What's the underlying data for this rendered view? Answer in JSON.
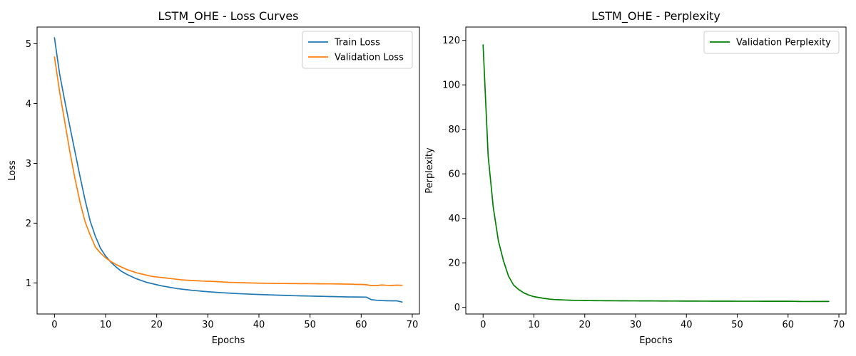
{
  "chart_data": [
    {
      "type": "line",
      "title": "LSTM_OHE - Loss Curves",
      "xlabel": "Epochs",
      "ylabel": "Loss",
      "xlim": [
        -3.4,
        71.4
      ],
      "ylim": [
        0.48,
        5.28
      ],
      "xticks": [
        0,
        10,
        20,
        30,
        40,
        50,
        60,
        70
      ],
      "yticks": [
        1,
        2,
        3,
        4,
        5
      ],
      "legend_position": "upper right",
      "series": [
        {
          "name": "Train Loss",
          "color": "#1f77b4",
          "x": [
            0,
            1,
            2,
            3,
            4,
            5,
            6,
            7,
            8,
            9,
            10,
            11,
            12,
            13,
            14,
            15,
            16,
            17,
            18,
            19,
            20,
            21,
            22,
            23,
            24,
            25,
            26,
            27,
            28,
            29,
            30,
            31,
            32,
            33,
            34,
            35,
            36,
            37,
            38,
            39,
            40,
            41,
            42,
            43,
            44,
            45,
            46,
            47,
            48,
            49,
            50,
            51,
            52,
            53,
            54,
            55,
            56,
            57,
            58,
            59,
            60,
            61,
            62,
            63,
            64,
            65,
            66,
            67,
            68
          ],
          "values": [
            5.1,
            4.5,
            4.05,
            3.62,
            3.2,
            2.78,
            2.38,
            2.03,
            1.78,
            1.58,
            1.45,
            1.35,
            1.27,
            1.2,
            1.15,
            1.11,
            1.07,
            1.04,
            1.01,
            0.99,
            0.97,
            0.95,
            0.935,
            0.92,
            0.905,
            0.895,
            0.885,
            0.875,
            0.868,
            0.86,
            0.853,
            0.847,
            0.84,
            0.835,
            0.83,
            0.825,
            0.82,
            0.817,
            0.813,
            0.81,
            0.806,
            0.803,
            0.8,
            0.797,
            0.794,
            0.791,
            0.788,
            0.786,
            0.784,
            0.782,
            0.78,
            0.778,
            0.776,
            0.774,
            0.772,
            0.77,
            0.768,
            0.766,
            0.765,
            0.764,
            0.763,
            0.762,
            0.72,
            0.71,
            0.705,
            0.702,
            0.7,
            0.7,
            0.68
          ]
        },
        {
          "name": "Validation Loss",
          "color": "#ff7f0e",
          "x": [
            0,
            1,
            2,
            3,
            4,
            5,
            6,
            7,
            8,
            9,
            10,
            11,
            12,
            13,
            14,
            15,
            16,
            17,
            18,
            19,
            20,
            21,
            22,
            23,
            24,
            25,
            26,
            27,
            28,
            29,
            30,
            31,
            32,
            33,
            34,
            35,
            36,
            37,
            38,
            39,
            40,
            41,
            42,
            43,
            44,
            45,
            46,
            47,
            48,
            49,
            50,
            51,
            52,
            53,
            54,
            55,
            56,
            57,
            58,
            59,
            60,
            61,
            62,
            63,
            64,
            65,
            66,
            67,
            68
          ],
          "values": [
            4.78,
            4.2,
            3.7,
            3.2,
            2.75,
            2.35,
            2.02,
            1.8,
            1.6,
            1.5,
            1.42,
            1.36,
            1.31,
            1.27,
            1.23,
            1.2,
            1.17,
            1.15,
            1.13,
            1.11,
            1.1,
            1.09,
            1.08,
            1.07,
            1.06,
            1.05,
            1.045,
            1.04,
            1.035,
            1.03,
            1.028,
            1.025,
            1.02,
            1.015,
            1.01,
            1.008,
            1.005,
            1.003,
            1.0,
            0.998,
            0.995,
            0.995,
            0.993,
            0.992,
            0.99,
            0.99,
            0.989,
            0.989,
            0.988,
            0.988,
            0.987,
            0.986,
            0.985,
            0.985,
            0.984,
            0.983,
            0.982,
            0.98,
            0.978,
            0.976,
            0.974,
            0.97,
            0.955,
            0.955,
            0.965,
            0.96,
            0.958,
            0.962,
            0.96
          ]
        }
      ]
    },
    {
      "type": "line",
      "title": "LSTM_OHE - Perplexity",
      "xlabel": "Epochs",
      "ylabel": "Perplexity",
      "xlim": [
        -3.4,
        71.4
      ],
      "ylim": [
        -3.0,
        126.0
      ],
      "xticks": [
        0,
        10,
        20,
        30,
        40,
        50,
        60,
        70
      ],
      "yticks": [
        0,
        20,
        40,
        60,
        80,
        100,
        120
      ],
      "legend_position": "upper right",
      "series": [
        {
          "name": "Validation Perplexity",
          "color": "#008000",
          "x": [
            0,
            1,
            2,
            3,
            4,
            5,
            6,
            7,
            8,
            9,
            10,
            11,
            12,
            13,
            14,
            15,
            16,
            17,
            18,
            19,
            20,
            21,
            22,
            23,
            24,
            25,
            26,
            27,
            28,
            29,
            30,
            31,
            32,
            33,
            34,
            35,
            36,
            37,
            38,
            39,
            40,
            41,
            42,
            43,
            44,
            45,
            46,
            47,
            48,
            49,
            50,
            51,
            52,
            53,
            54,
            55,
            56,
            57,
            58,
            59,
            60,
            61,
            62,
            63,
            64,
            65,
            66,
            67,
            68
          ],
          "values": [
            118,
            68,
            45,
            30,
            21,
            14,
            10,
            8,
            6.5,
            5.5,
            4.8,
            4.4,
            4,
            3.7,
            3.5,
            3.4,
            3.3,
            3.2,
            3.15,
            3.1,
            3.05,
            3.02,
            3,
            2.98,
            2.96,
            2.95,
            2.94,
            2.93,
            2.92,
            2.91,
            2.9,
            2.89,
            2.88,
            2.87,
            2.86,
            2.85,
            2.84,
            2.83,
            2.82,
            2.81,
            2.8,
            2.79,
            2.79,
            2.78,
            2.78,
            2.77,
            2.77,
            2.77,
            2.76,
            2.76,
            2.75,
            2.75,
            2.75,
            2.74,
            2.74,
            2.73,
            2.73,
            2.72,
            2.72,
            2.71,
            2.71,
            2.7,
            2.65,
            2.62,
            2.62,
            2.63,
            2.63,
            2.64,
            2.64
          ]
        }
      ]
    }
  ]
}
